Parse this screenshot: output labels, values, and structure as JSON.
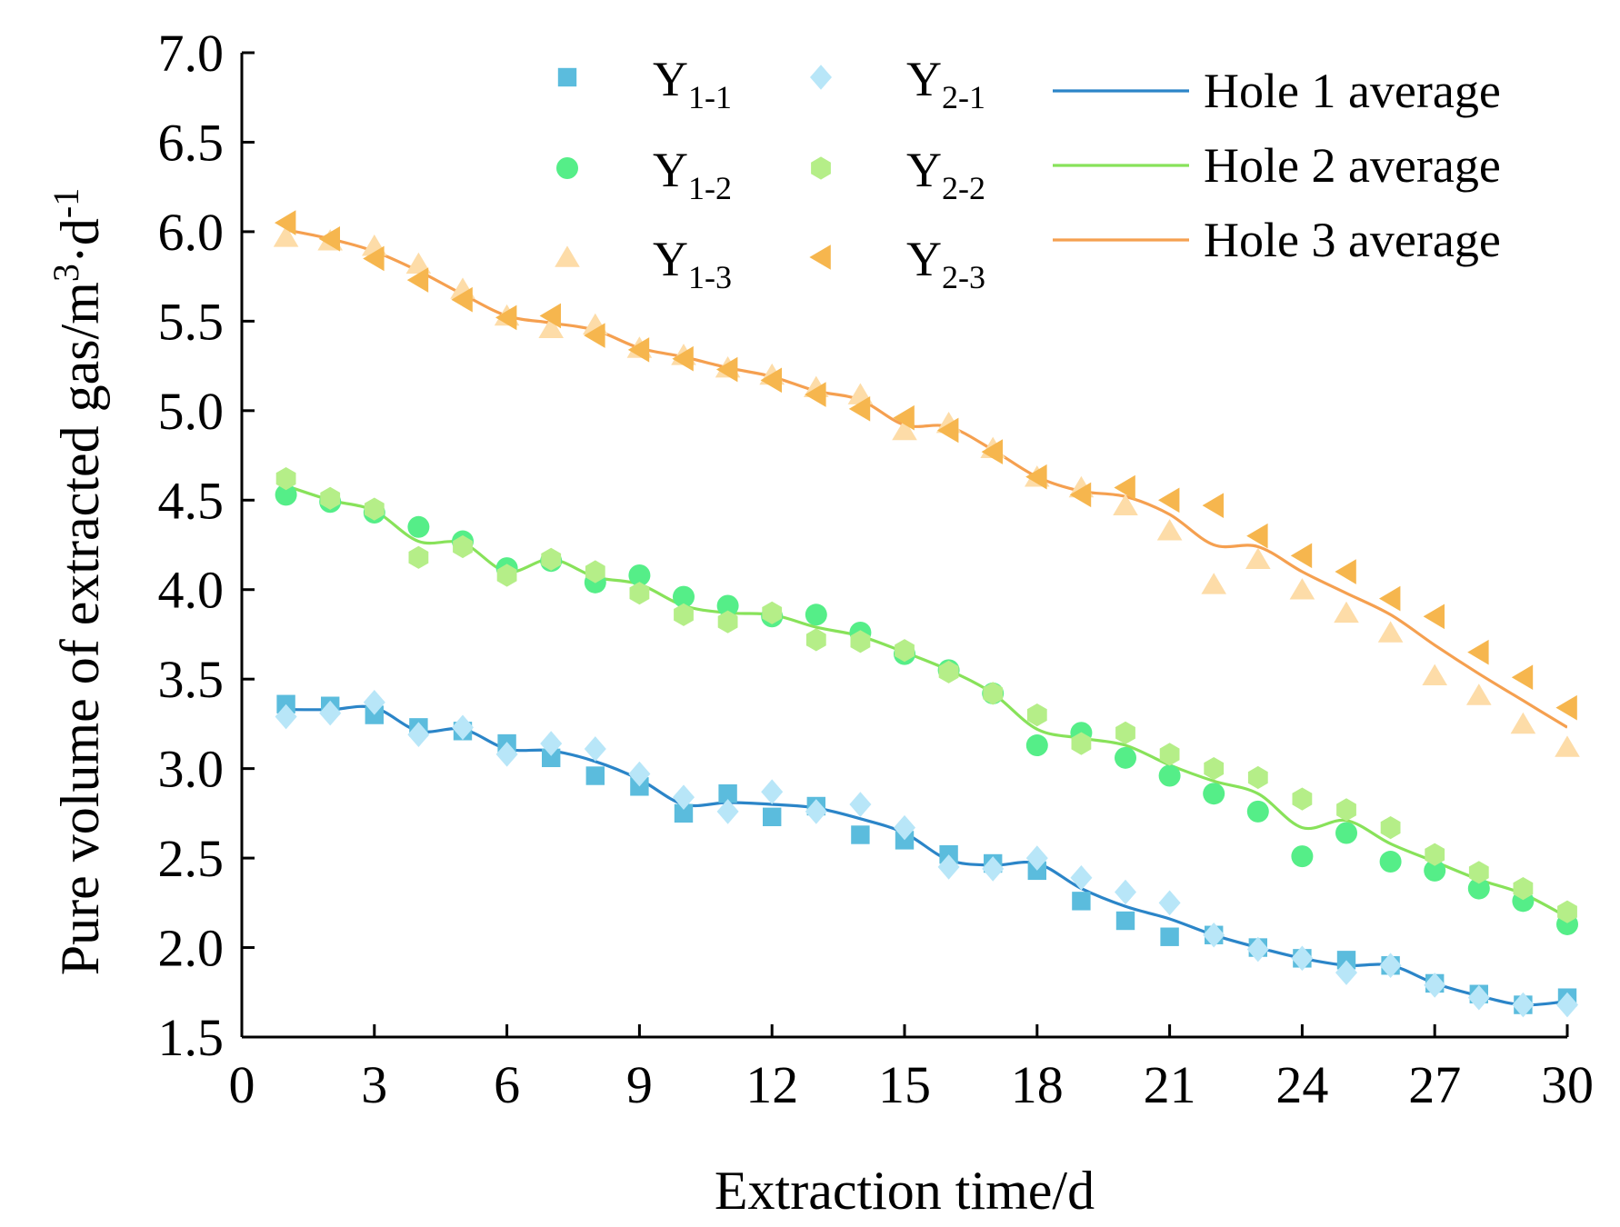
{
  "chart_data": {
    "type": "scatter+line",
    "title": "",
    "xlabel": "Extraction time/d",
    "ylabel": {
      "main": "Pure volume of extracted gas/m",
      "sup1": "3",
      "mid": "·d",
      "sup2": "-1"
    },
    "xlim": [
      0,
      30
    ],
    "ylim": [
      1.5,
      7.0
    ],
    "xticks": [
      0,
      3,
      6,
      9,
      12,
      15,
      18,
      21,
      24,
      27,
      30
    ],
    "yticks": [
      1.5,
      2.0,
      2.5,
      3.0,
      3.5,
      4.0,
      4.5,
      5.0,
      5.5,
      6.0,
      6.5,
      7.0
    ],
    "ytick_labels": [
      "1.5",
      "2.0",
      "2.5",
      "3.0",
      "3.5",
      "4.0",
      "4.5",
      "5.0",
      "5.5",
      "6.0",
      "6.5",
      "7.0"
    ],
    "x": [
      1,
      2,
      3,
      4,
      5,
      6,
      7,
      8,
      9,
      10,
      11,
      12,
      13,
      14,
      15,
      16,
      17,
      18,
      19,
      20,
      21,
      22,
      23,
      24,
      25,
      26,
      27,
      28,
      29,
      30
    ],
    "scatter_series": [
      {
        "id": "y11",
        "name": "Y",
        "sub": "1-1",
        "marker": "square",
        "color": "#5BBCDD",
        "values": [
          3.36,
          3.35,
          3.3,
          3.23,
          3.21,
          3.14,
          3.06,
          2.96,
          2.9,
          2.75,
          2.86,
          2.73,
          2.79,
          2.63,
          2.6,
          2.52,
          2.47,
          2.43,
          2.26,
          2.15,
          2.06,
          2.07,
          2.0,
          1.94,
          1.93,
          1.9,
          1.8,
          1.74,
          1.68,
          1.72
        ]
      },
      {
        "id": "y12",
        "name": "Y",
        "sub": "1-2",
        "marker": "circle",
        "color": "#55EE88",
        "values": [
          4.53,
          4.49,
          4.43,
          4.35,
          4.27,
          4.12,
          4.16,
          4.04,
          4.08,
          3.96,
          3.91,
          3.85,
          3.86,
          3.76,
          3.64,
          3.55,
          3.42,
          3.13,
          3.2,
          3.06,
          2.96,
          2.86,
          2.76,
          2.51,
          2.64,
          2.48,
          2.43,
          2.33,
          2.26,
          2.13
        ]
      },
      {
        "id": "y13",
        "name": "Y",
        "sub": "1-3",
        "marker": "triangle-up",
        "color": "#FDDCA8",
        "values": [
          5.97,
          5.95,
          5.92,
          5.82,
          5.68,
          5.53,
          5.46,
          5.48,
          5.35,
          5.31,
          5.24,
          5.2,
          5.13,
          5.09,
          4.89,
          4.93,
          4.79,
          4.63,
          4.57,
          4.47,
          4.33,
          4.03,
          4.17,
          4.0,
          3.87,
          3.76,
          3.52,
          3.41,
          3.25,
          3.12
        ]
      },
      {
        "id": "y21",
        "name": "Y",
        "sub": "2-1",
        "marker": "diamond",
        "color": "#B8E6F8",
        "values": [
          3.29,
          3.31,
          3.37,
          3.19,
          3.23,
          3.08,
          3.14,
          3.11,
          2.97,
          2.84,
          2.76,
          2.87,
          2.76,
          2.8,
          2.67,
          2.45,
          2.44,
          2.5,
          2.39,
          2.31,
          2.25,
          2.07,
          1.99,
          1.94,
          1.86,
          1.9,
          1.79,
          1.72,
          1.68,
          1.68
        ]
      },
      {
        "id": "y22",
        "name": "Y",
        "sub": "2-2",
        "marker": "hexagon",
        "color": "#B5EE88",
        "values": [
          4.62,
          4.51,
          4.45,
          4.18,
          4.24,
          4.08,
          4.17,
          4.1,
          3.98,
          3.86,
          3.82,
          3.87,
          3.72,
          3.71,
          3.66,
          3.54,
          3.42,
          3.3,
          3.14,
          3.2,
          3.08,
          3.0,
          2.95,
          2.83,
          2.77,
          2.67,
          2.52,
          2.42,
          2.33,
          2.2
        ]
      },
      {
        "id": "y23",
        "name": "Y",
        "sub": "2-3",
        "marker": "triangle-left",
        "color": "#F6B64E",
        "values": [
          6.05,
          5.96,
          5.85,
          5.73,
          5.62,
          5.52,
          5.53,
          5.42,
          5.34,
          5.29,
          5.23,
          5.17,
          5.09,
          5.01,
          4.96,
          4.89,
          4.77,
          4.63,
          4.53,
          4.57,
          4.5,
          4.47,
          4.3,
          4.19,
          4.1,
          3.95,
          3.85,
          3.65,
          3.51,
          3.34
        ]
      }
    ],
    "line_series": [
      {
        "id": "h1",
        "name": "Hole 1 average",
        "color": "#2B85C8",
        "values": [
          3.33,
          3.33,
          3.34,
          3.21,
          3.22,
          3.11,
          3.1,
          3.04,
          2.94,
          2.8,
          2.81,
          2.8,
          2.78,
          2.72,
          2.64,
          2.49,
          2.46,
          2.47,
          2.33,
          2.23,
          2.16,
          2.07,
          2.0,
          1.94,
          1.9,
          1.9,
          1.8,
          1.73,
          1.68,
          1.7
        ]
      },
      {
        "id": "h2",
        "name": "Hole 2 average",
        "color": "#88E25A",
        "values": [
          4.58,
          4.5,
          4.44,
          4.27,
          4.26,
          4.1,
          4.17,
          4.07,
          4.03,
          3.91,
          3.87,
          3.86,
          3.79,
          3.74,
          3.65,
          3.55,
          3.42,
          3.22,
          3.17,
          3.13,
          3.02,
          2.93,
          2.86,
          2.67,
          2.71,
          2.58,
          2.48,
          2.38,
          2.3,
          2.17
        ]
      },
      {
        "id": "h3",
        "name": "Hole 3 average",
        "color": "#F5A050",
        "values": [
          6.01,
          5.96,
          5.89,
          5.78,
          5.65,
          5.53,
          5.49,
          5.45,
          5.35,
          5.3,
          5.24,
          5.19,
          5.11,
          5.06,
          4.92,
          4.91,
          4.78,
          4.63,
          4.55,
          4.52,
          4.42,
          4.25,
          4.24,
          4.1,
          3.98,
          3.86,
          3.69,
          3.53,
          3.38,
          3.23
        ]
      }
    ],
    "legend_position": "top"
  }
}
